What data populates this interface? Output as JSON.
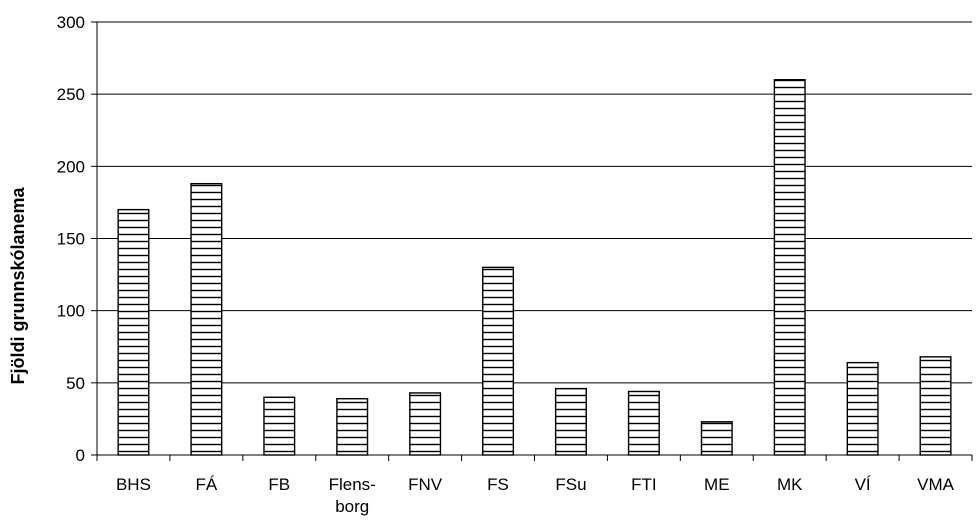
{
  "chart_data": {
    "type": "bar",
    "categories": [
      "BHS",
      "FÁ",
      "FB",
      "Flens-\nborg",
      "FNV",
      "FS",
      "FSu",
      "FTI",
      "ME",
      "MK",
      "VÍ",
      "VMA"
    ],
    "values": [
      170,
      188,
      40,
      39,
      43,
      130,
      46,
      44,
      23,
      260,
      64,
      68
    ],
    "ylabel": "Fjöldi grunnskólanema",
    "xlabel": "",
    "title": "",
    "ylim": [
      0,
      300
    ],
    "yticks": [
      0,
      50,
      100,
      150,
      200,
      250,
      300
    ],
    "grid": "horizontal",
    "bar_fill": "horizontal-hatch",
    "colors": {
      "bar_stroke": "#000000",
      "hatch": "#000000",
      "background": "#ffffff",
      "grid": "#000000"
    }
  }
}
